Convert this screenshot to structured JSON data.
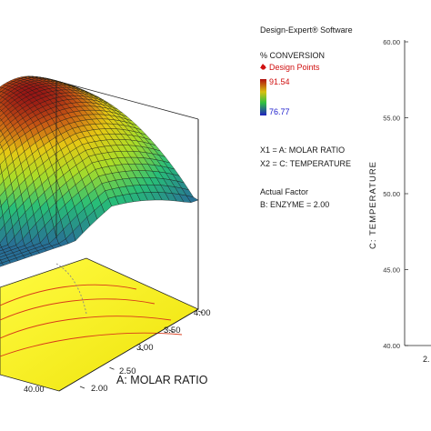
{
  "legend": {
    "software": "Design-Expert® Software",
    "response": "% CONVERSION",
    "design_points": "Design Points",
    "high_value": "91.54",
    "low_value": "76.77",
    "x1": "X1 = A: MOLAR RATIO",
    "x2": "X2 = C: TEMPERATURE",
    "actual_factor_title": "Actual Factor",
    "actual_factor": "B: ENZYME = 2.00"
  },
  "colors": {
    "surface_high": "#b01010",
    "surface_mid": "#30c040",
    "surface_low": "#2020c0",
    "floor": "#f4ee0a",
    "contour": "#d83a1a"
  },
  "chart_data": [
    {
      "type": "surface",
      "zlabel": "% CONVERSION",
      "xlabel": "A: MOLAR RATIO",
      "ylabel": "C: TEMPERATURE",
      "x_ticks": [
        "2.00",
        "2.50",
        "3.00",
        "3.50",
        "4.00"
      ],
      "y_ticks_visible": [
        "40.00"
      ],
      "z_range": [
        76.77,
        91.54
      ],
      "x_range": [
        2.0,
        4.0
      ],
      "y_range": [
        40.0,
        60.0
      ]
    },
    {
      "type": "contour",
      "ylabel": "C: TEMPERATURE",
      "y_ticks": [
        "60.00",
        "55.00",
        "50.00",
        "45.00",
        "40.00"
      ],
      "x_tick_partial": "2.",
      "y_range": [
        40.0,
        60.0
      ]
    }
  ]
}
